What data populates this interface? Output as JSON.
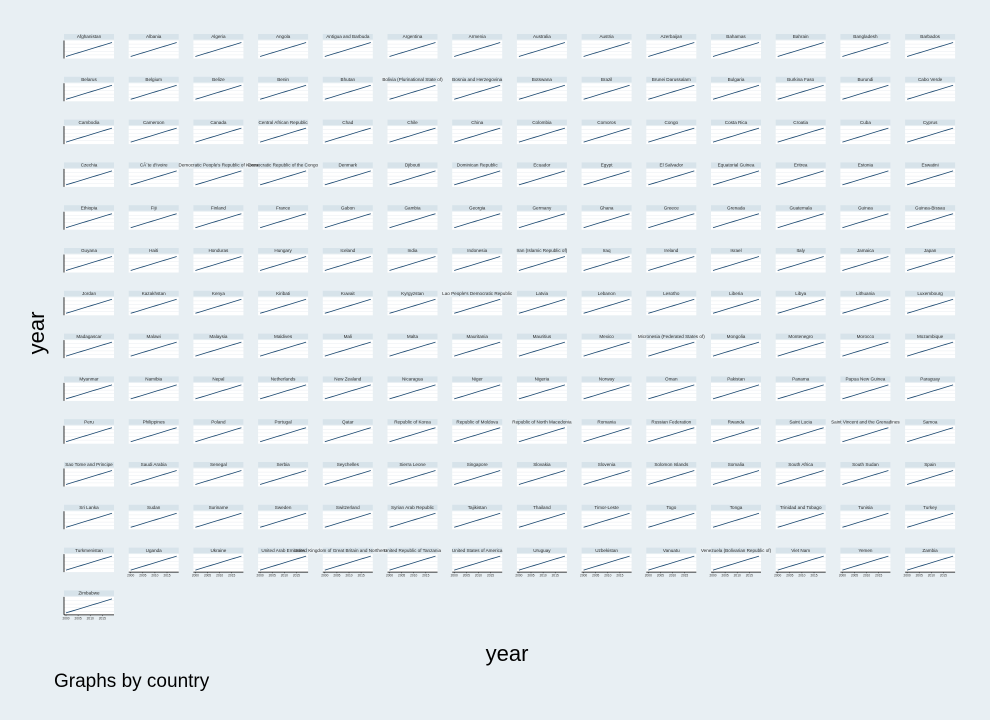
{
  "chart_data": {
    "type": "line",
    "layout": "small-multiples",
    "by": "country",
    "xlabel": "year",
    "ylabel": "year",
    "note": "Graphs by country",
    "x": [
      2000,
      2001,
      2002,
      2003,
      2004,
      2005,
      2006,
      2007,
      2008,
      2009,
      2010,
      2011,
      2012,
      2013,
      2014,
      2015,
      2016,
      2017,
      2018,
      2019
    ],
    "xlim": [
      2000,
      2019
    ],
    "ylim": [
      2000,
      2019
    ],
    "x_ticks": [
      "2000",
      "2005",
      "2010",
      "2015"
    ],
    "grid": true,
    "panels": [
      "Afghanistan",
      "Albania",
      "Algeria",
      "Angola",
      "Antigua and Barbuda",
      "Argentina",
      "Armenia",
      "Australia",
      "Austria",
      "Azerbaijan",
      "Bahamas",
      "Bahrain",
      "Bangladesh",
      "Barbados",
      "Belarus",
      "Belgium",
      "Belize",
      "Benin",
      "Bhutan",
      "Bolivia (Plurinational State of)",
      "Bosnia and Herzegovina",
      "Botswana",
      "Brazil",
      "Brunei Darussalam",
      "Bulgaria",
      "Burkina Faso",
      "Burundi",
      "Cabo Verde",
      "Cambodia",
      "Cameroon",
      "Canada",
      "Central African Republic",
      "Chad",
      "Chile",
      "China",
      "Colombia",
      "Comoros",
      "Congo",
      "Costa Rica",
      "Croatia",
      "Cuba",
      "Cyprus",
      "Czechia",
      "CÃ´te d'Ivoire",
      "Democratic People's Republic of Korea",
      "Democratic Republic of the Congo",
      "Denmark",
      "Djibouti",
      "Dominican Republic",
      "Ecuador",
      "Egypt",
      "El Salvador",
      "Equatorial Guinea",
      "Eritrea",
      "Estonia",
      "Eswatini",
      "Ethiopia",
      "Fiji",
      "Finland",
      "France",
      "Gabon",
      "Gambia",
      "Georgia",
      "Germany",
      "Ghana",
      "Greece",
      "Grenada",
      "Guatemala",
      "Guinea",
      "Guinea-Bissau",
      "Guyana",
      "Haiti",
      "Honduras",
      "Hungary",
      "Iceland",
      "India",
      "Indonesia",
      "Iran (Islamic Republic of)",
      "Iraq",
      "Ireland",
      "Israel",
      "Italy",
      "Jamaica",
      "Japan",
      "Jordan",
      "Kazakhstan",
      "Kenya",
      "Kiribati",
      "Kuwait",
      "Kyrgyzstan",
      "Lao People's Democratic Republic",
      "Latvia",
      "Lebanon",
      "Lesotho",
      "Liberia",
      "Libya",
      "Lithuania",
      "Luxembourg",
      "Madagascar",
      "Malawi",
      "Malaysia",
      "Maldives",
      "Mali",
      "Malta",
      "Mauritania",
      "Mauritius",
      "Mexico",
      "Micronesia (Federated States of)",
      "Mongolia",
      "Montenegro",
      "Morocco",
      "Mozambique",
      "Myanmar",
      "Namibia",
      "Nepal",
      "Netherlands",
      "New Zealand",
      "Nicaragua",
      "Niger",
      "Nigeria",
      "Norway",
      "Oman",
      "Pakistan",
      "Panama",
      "Papua New Guinea",
      "Paraguay",
      "Peru",
      "Philippines",
      "Poland",
      "Portugal",
      "Qatar",
      "Republic of Korea",
      "Republic of Moldova",
      "Republic of North Macedonia",
      "Romania",
      "Russian Federation",
      "Rwanda",
      "Saint Lucia",
      "Saint Vincent and the Grenadines",
      "Samoa",
      "Sao Tome and Principe",
      "Saudi Arabia",
      "Senegal",
      "Serbia",
      "Seychelles",
      "Sierra Leone",
      "Singapore",
      "Slovakia",
      "Slovenia",
      "Solomon Islands",
      "Somalia",
      "South Africa",
      "South Sudan",
      "Spain",
      "Sri Lanka",
      "Sudan",
      "Suriname",
      "Sweden",
      "Switzerland",
      "Syrian Arab Republic",
      "Tajikistan",
      "Thailand",
      "Timor-Leste",
      "Togo",
      "Tonga",
      "Trinidad and Tobago",
      "Tunisia",
      "Turkey",
      "Turkmenistan",
      "Uganda",
      "Ukraine",
      "United Arab Emirates",
      "United Kingdom of Great Britain and Northern Ireland",
      "United Republic of Tanzania",
      "United States of America",
      "Uruguay",
      "Uzbekistan",
      "Vanuatu",
      "Venezuela (Bolivarian Republic of)",
      "Viet Nam",
      "Yemen",
      "Zambia",
      "Zimbabwe"
    ],
    "colors": {
      "background": "#e8eff3",
      "panel": "#ffffff",
      "strip": "#d7e3ea",
      "line": "#1a476f",
      "grid": "#e2e8ec",
      "axis": "#000000"
    }
  }
}
